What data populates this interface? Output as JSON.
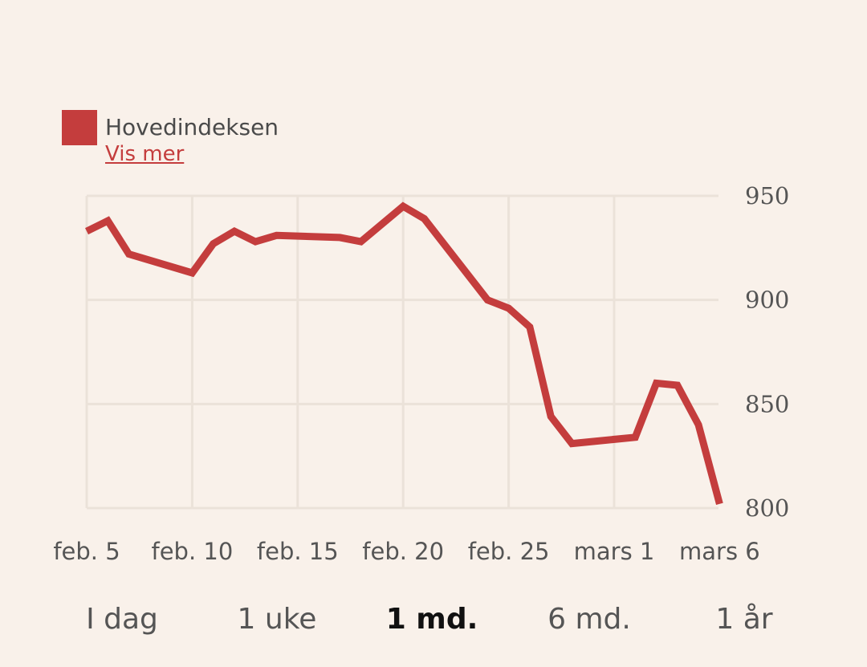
{
  "legend": {
    "label": "Hovedindeksen",
    "link": "Vis mer",
    "color": "#c43d3d"
  },
  "range_buttons": [
    {
      "label": "I dag",
      "active": false
    },
    {
      "label": "1 uke",
      "active": false
    },
    {
      "label": "1 md.",
      "active": true
    },
    {
      "label": "6 md.",
      "active": false
    },
    {
      "label": "1 år",
      "active": false
    }
  ],
  "chart_data": {
    "type": "line",
    "title": "",
    "xlabel": "",
    "ylabel": "",
    "ylim": [
      800,
      950
    ],
    "yticks": [
      800,
      850,
      900,
      950
    ],
    "xticks": [
      {
        "day": 5,
        "label": "feb. 5"
      },
      {
        "day": 10,
        "label": "feb. 10"
      },
      {
        "day": 15,
        "label": "feb. 15"
      },
      {
        "day": 20,
        "label": "feb. 20"
      },
      {
        "day": 25,
        "label": "feb. 25"
      },
      {
        "day": 30,
        "label": "mars 1"
      },
      {
        "day": 35,
        "label": "mars 6"
      }
    ],
    "grid": true,
    "series": [
      {
        "name": "Hovedindeksen",
        "color": "#c43d3d",
        "points": [
          {
            "day": 5,
            "value": 933
          },
          {
            "day": 6,
            "value": 938
          },
          {
            "day": 7,
            "value": 922
          },
          {
            "day": 10,
            "value": 913
          },
          {
            "day": 11,
            "value": 927
          },
          {
            "day": 12,
            "value": 933
          },
          {
            "day": 13,
            "value": 928
          },
          {
            "day": 14,
            "value": 931
          },
          {
            "day": 17,
            "value": 930
          },
          {
            "day": 18,
            "value": 928
          },
          {
            "day": 20,
            "value": 945
          },
          {
            "day": 21,
            "value": 939
          },
          {
            "day": 24,
            "value": 900
          },
          {
            "day": 25,
            "value": 896
          },
          {
            "day": 26,
            "value": 887
          },
          {
            "day": 27,
            "value": 844
          },
          {
            "day": 28,
            "value": 831
          },
          {
            "day": 31,
            "value": 834
          },
          {
            "day": 32,
            "value": 860
          },
          {
            "day": 33,
            "value": 859
          },
          {
            "day": 34,
            "value": 840
          },
          {
            "day": 35,
            "value": 802
          }
        ]
      }
    ]
  }
}
